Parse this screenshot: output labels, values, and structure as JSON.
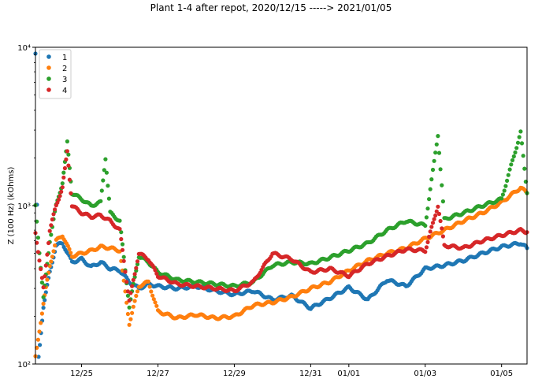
{
  "chart_data": {
    "type": "scatter",
    "title": "Plant 1-4 after repot, 2020/12/15 -----> 2021/01/05",
    "xlabel": "",
    "ylabel": "Z (100 Hz) (kOhms)",
    "yscale": "log",
    "ylim": [
      100,
      10000
    ],
    "xlim": [
      "2020-12-23T19:00",
      "2021-01-05T16:00"
    ],
    "x_ticks": [
      {
        "date": "2020-12-25",
        "label": "12/25"
      },
      {
        "date": "2020-12-27",
        "label": "12/27"
      },
      {
        "date": "2020-12-29",
        "label": "12/29"
      },
      {
        "date": "2020-12-31",
        "label": "12/31"
      },
      {
        "date": "2021-01-01",
        "label": "01/01"
      },
      {
        "date": "2021-01-03",
        "label": "01/03"
      },
      {
        "date": "2021-01-05",
        "label": "01/05"
      }
    ],
    "y_ticks": [
      {
        "value": 100,
        "label": "10²"
      },
      {
        "value": 1000,
        "label": "10³"
      },
      {
        "value": 10000,
        "label": "10⁴"
      }
    ],
    "grid": false,
    "legend_position": "top-left",
    "series": [
      {
        "name": "1",
        "color": "#1f77b4",
        "points": [
          [
            "2020-12-23T19:00",
            9000
          ],
          [
            "2020-12-23T21:00",
            110
          ],
          [
            "2020-12-24T00:00",
            230
          ],
          [
            "2020-12-24T04:00",
            380
          ],
          [
            "2020-12-24T08:00",
            560
          ],
          [
            "2020-12-24T12:00",
            580
          ],
          [
            "2020-12-24T18:00",
            440
          ],
          [
            "2020-12-25T00:00",
            460
          ],
          [
            "2020-12-25T06:00",
            410
          ],
          [
            "2020-12-25T12:00",
            440
          ],
          [
            "2020-12-25T18:00",
            400
          ],
          [
            "2020-12-26T00:00",
            390
          ],
          [
            "2020-12-26T06:00",
            330
          ],
          [
            "2020-12-26T12:00",
            300
          ],
          [
            "2020-12-26T18:00",
            320
          ],
          [
            "2020-12-27T00:00",
            310
          ],
          [
            "2020-12-27T12:00",
            300
          ],
          [
            "2020-12-28T00:00",
            310
          ],
          [
            "2020-12-28T12:00",
            290
          ],
          [
            "2020-12-29T00:00",
            275
          ],
          [
            "2020-12-29T12:00",
            290
          ],
          [
            "2020-12-30T00:00",
            255
          ],
          [
            "2020-12-30T12:00",
            270
          ],
          [
            "2020-12-31T00:00",
            225
          ],
          [
            "2020-12-31T12:00",
            260
          ],
          [
            "2021-01-01T00:00",
            305
          ],
          [
            "2021-01-01T12:00",
            255
          ],
          [
            "2021-01-02T00:00",
            340
          ],
          [
            "2021-01-02T12:00",
            310
          ],
          [
            "2021-01-03T00:00",
            400
          ],
          [
            "2021-01-03T12:00",
            420
          ],
          [
            "2021-01-04T00:00",
            450
          ],
          [
            "2021-01-04T12:00",
            500
          ],
          [
            "2021-01-05T00:00",
            550
          ],
          [
            "2021-01-05T12:00",
            580
          ],
          [
            "2021-01-05T16:00",
            540
          ]
        ]
      },
      {
        "name": "2",
        "color": "#ff7f0e",
        "points": [
          [
            "2020-12-23T19:00",
            110
          ],
          [
            "2020-12-24T00:00",
            240
          ],
          [
            "2020-12-24T04:00",
            420
          ],
          [
            "2020-12-24T08:00",
            600
          ],
          [
            "2020-12-24T12:00",
            650
          ],
          [
            "2020-12-24T18:00",
            480
          ],
          [
            "2020-12-25T00:00",
            500
          ],
          [
            "2020-12-25T06:00",
            520
          ],
          [
            "2020-12-25T12:00",
            550
          ],
          [
            "2020-12-25T18:00",
            540
          ],
          [
            "2020-12-26T00:00",
            520
          ],
          [
            "2020-12-26T06:00",
            180
          ],
          [
            "2020-12-26T12:00",
            310
          ],
          [
            "2020-12-26T18:00",
            330
          ],
          [
            "2020-12-27T00:00",
            215
          ],
          [
            "2020-12-27T12:00",
            195
          ],
          [
            "2020-12-28T00:00",
            205
          ],
          [
            "2020-12-28T12:00",
            195
          ],
          [
            "2020-12-29T00:00",
            200
          ],
          [
            "2020-12-29T12:00",
            235
          ],
          [
            "2020-12-30T00:00",
            245
          ],
          [
            "2020-12-30T12:00",
            265
          ],
          [
            "2020-12-31T00:00",
            300
          ],
          [
            "2020-12-31T12:00",
            330
          ],
          [
            "2021-01-01T00:00",
            390
          ],
          [
            "2021-01-01T12:00",
            450
          ],
          [
            "2021-01-02T00:00",
            500
          ],
          [
            "2021-01-02T12:00",
            540
          ],
          [
            "2021-01-03T00:00",
            620
          ],
          [
            "2021-01-03T12:00",
            700
          ],
          [
            "2021-01-04T00:00",
            800
          ],
          [
            "2021-01-04T12:00",
            900
          ],
          [
            "2021-01-05T00:00",
            1050
          ],
          [
            "2021-01-05T12:00",
            1300
          ],
          [
            "2021-01-05T16:00",
            1200
          ]
        ]
      },
      {
        "name": "3",
        "color": "#2ca02c",
        "points": [
          [
            "2020-12-23T19:00",
            1000
          ],
          [
            "2020-12-24T00:00",
            260
          ],
          [
            "2020-12-24T04:00",
            600
          ],
          [
            "2020-12-24T08:00",
            1000
          ],
          [
            "2020-12-24T12:00",
            1400
          ],
          [
            "2020-12-24T15:00",
            2500
          ],
          [
            "2020-12-24T18:00",
            1200
          ],
          [
            "2020-12-25T00:00",
            1100
          ],
          [
            "2020-12-25T06:00",
            1000
          ],
          [
            "2020-12-25T12:00",
            1050
          ],
          [
            "2020-12-25T15:00",
            2000
          ],
          [
            "2020-12-25T18:00",
            900
          ],
          [
            "2020-12-26T00:00",
            800
          ],
          [
            "2020-12-26T06:00",
            230
          ],
          [
            "2020-12-26T12:00",
            480
          ],
          [
            "2020-12-26T18:00",
            440
          ],
          [
            "2020-12-27T00:00",
            380
          ],
          [
            "2020-12-27T12:00",
            340
          ],
          [
            "2020-12-28T00:00",
            330
          ],
          [
            "2020-12-28T12:00",
            320
          ],
          [
            "2020-12-29T00:00",
            310
          ],
          [
            "2020-12-29T12:00",
            330
          ],
          [
            "2020-12-30T00:00",
            420
          ],
          [
            "2020-12-30T12:00",
            440
          ],
          [
            "2020-12-31T00:00",
            430
          ],
          [
            "2020-12-31T12:00",
            470
          ],
          [
            "2021-01-01T00:00",
            520
          ],
          [
            "2021-01-01T12:00",
            580
          ],
          [
            "2021-01-02T00:00",
            700
          ],
          [
            "2021-01-02T12:00",
            800
          ],
          [
            "2021-01-03T00:00",
            750
          ],
          [
            "2021-01-03T08:00",
            2800
          ],
          [
            "2021-01-03T12:00",
            820
          ],
          [
            "2021-01-04T00:00",
            900
          ],
          [
            "2021-01-04T12:00",
            1000
          ],
          [
            "2021-01-05T00:00",
            1100
          ],
          [
            "2021-01-05T12:00",
            2900
          ],
          [
            "2021-01-05T16:00",
            1200
          ]
        ]
      },
      {
        "name": "4",
        "color": "#d62728",
        "points": [
          [
            "2020-12-23T19:00",
            680
          ],
          [
            "2020-12-24T00:00",
            300
          ],
          [
            "2020-12-24T04:00",
            700
          ],
          [
            "2020-12-24T08:00",
            1000
          ],
          [
            "2020-12-24T12:00",
            1300
          ],
          [
            "2020-12-24T15:00",
            2200
          ],
          [
            "2020-12-24T18:00",
            1000
          ],
          [
            "2020-12-25T00:00",
            900
          ],
          [
            "2020-12-25T06:00",
            850
          ],
          [
            "2020-12-25T12:00",
            870
          ],
          [
            "2020-12-25T18:00",
            800
          ],
          [
            "2020-12-26T00:00",
            700
          ],
          [
            "2020-12-26T06:00",
            250
          ],
          [
            "2020-12-26T12:00",
            500
          ],
          [
            "2020-12-26T18:00",
            460
          ],
          [
            "2020-12-27T00:00",
            360
          ],
          [
            "2020-12-27T12:00",
            320
          ],
          [
            "2020-12-28T00:00",
            310
          ],
          [
            "2020-12-28T12:00",
            300
          ],
          [
            "2020-12-29T00:00",
            290
          ],
          [
            "2020-12-29T12:00",
            330
          ],
          [
            "2020-12-30T00:00",
            500
          ],
          [
            "2020-12-30T12:00",
            460
          ],
          [
            "2020-12-31T00:00",
            380
          ],
          [
            "2020-12-31T12:00",
            400
          ],
          [
            "2021-01-01T00:00",
            360
          ],
          [
            "2021-01-01T12:00",
            430
          ],
          [
            "2021-01-02T00:00",
            480
          ],
          [
            "2021-01-02T12:00",
            530
          ],
          [
            "2021-01-03T00:00",
            520
          ],
          [
            "2021-01-03T08:00",
            1000
          ],
          [
            "2021-01-03T12:00",
            560
          ],
          [
            "2021-01-04T00:00",
            540
          ],
          [
            "2021-01-04T12:00",
            600
          ],
          [
            "2021-01-05T00:00",
            650
          ],
          [
            "2021-01-05T12:00",
            700
          ],
          [
            "2021-01-05T16:00",
            680
          ]
        ]
      }
    ]
  }
}
